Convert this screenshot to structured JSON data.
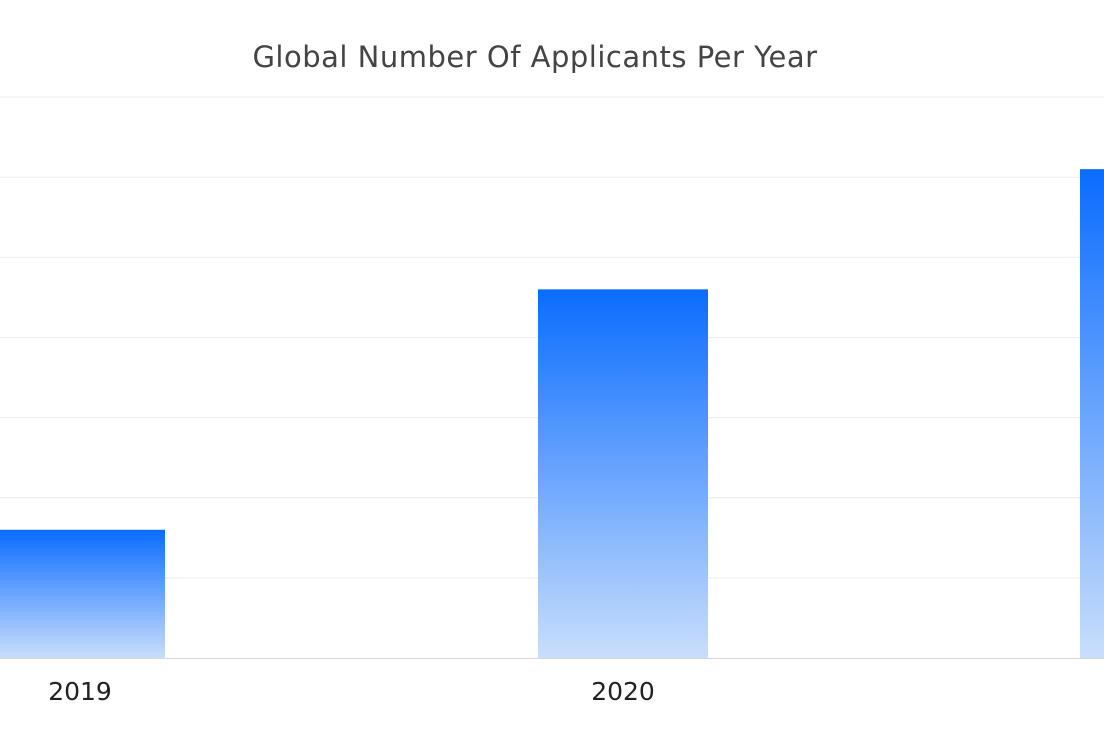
{
  "chart_data": {
    "type": "bar",
    "title": "Global Number Of Applicants Per Year",
    "categories": [
      "2019",
      "2020",
      ""
    ],
    "values": [
      1.6,
      4.6,
      6.1
    ],
    "ylim": [
      0,
      7
    ],
    "grid": true,
    "xlabel": "",
    "ylabel": "",
    "colors": {
      "bar_top": "#0a6cff",
      "bar_bottom": "#c9defb",
      "grid": "#ebebeb",
      "axis": "#d6d6d6"
    }
  }
}
